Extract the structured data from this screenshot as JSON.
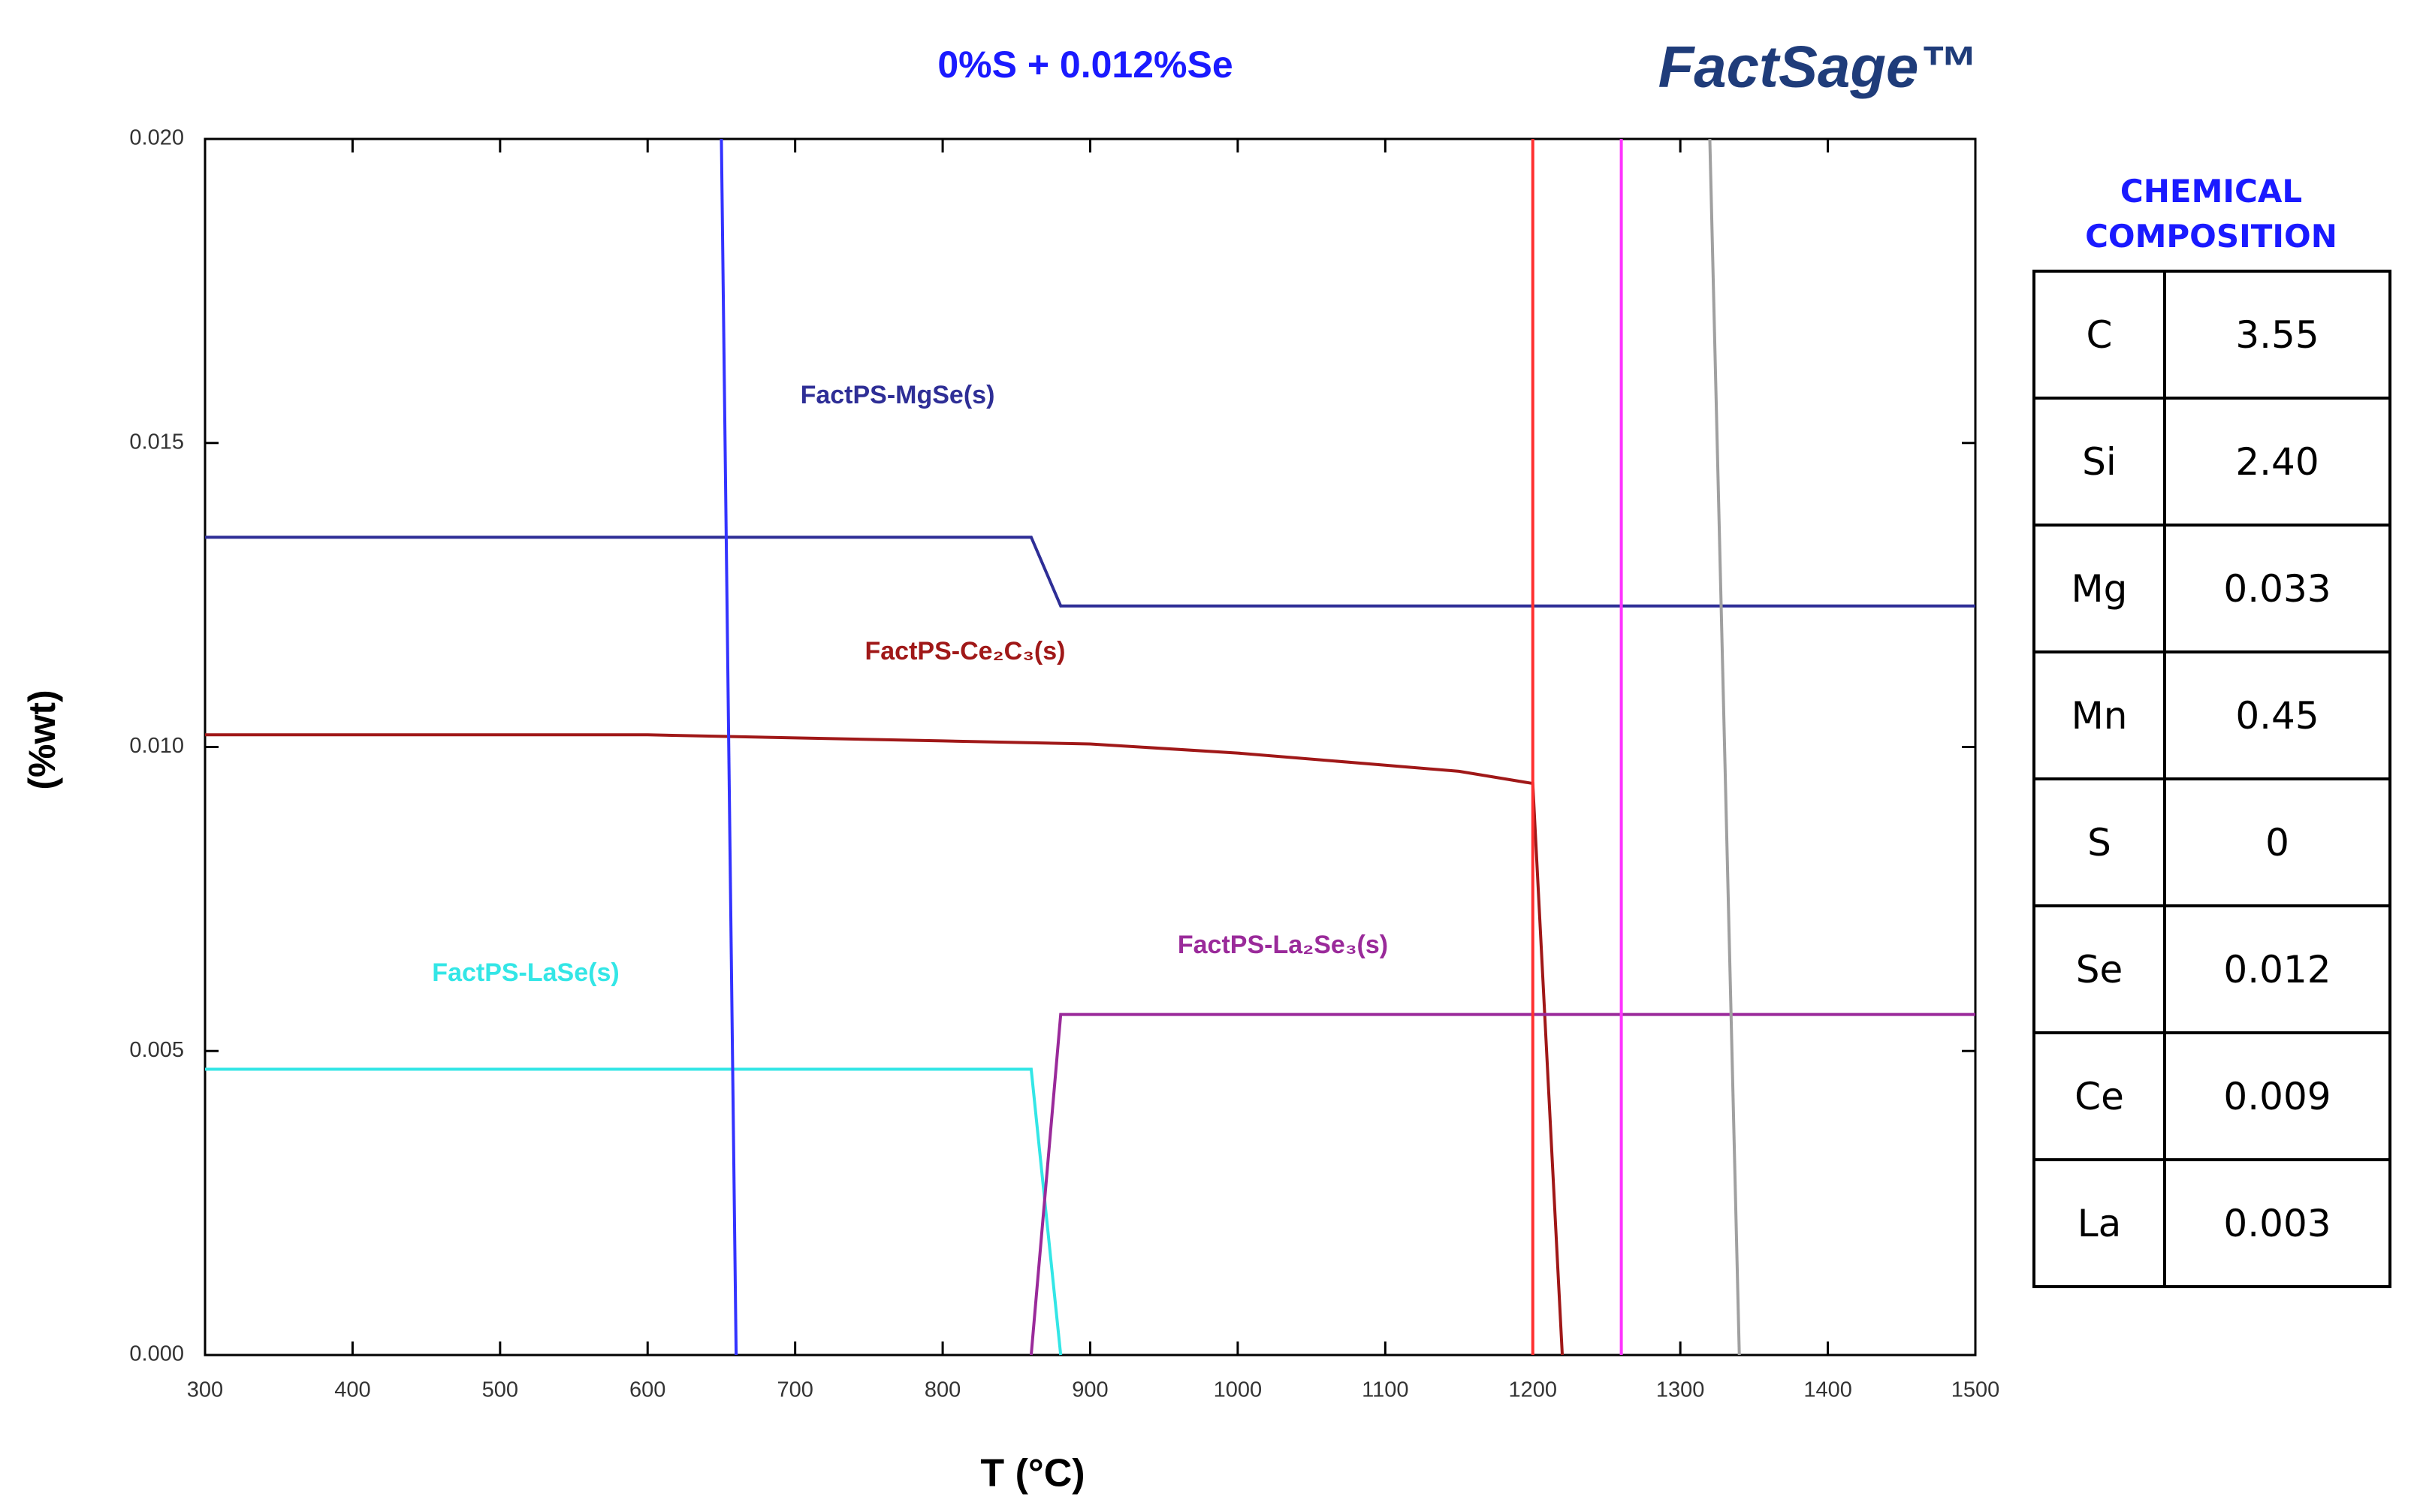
{
  "chart_data": {
    "type": "line",
    "title": "0%S + 0.012%Se",
    "logo": "FactSage™",
    "x_label": "T (°C)",
    "y_label": "(%wt)",
    "xlim": [
      300,
      1500
    ],
    "ylim": [
      0,
      0.02
    ],
    "xticks": [
      300,
      400,
      500,
      600,
      700,
      800,
      900,
      1000,
      1100,
      1200,
      1300,
      1400,
      1500
    ],
    "yticks": [
      {
        "value": 0,
        "label": "0.000"
      },
      {
        "value": 0.005,
        "label": "0.005"
      },
      {
        "value": 0.01,
        "label": "0.010"
      },
      {
        "value": 0.015,
        "label": "0.015"
      },
      {
        "value": 0.02,
        "label": "0.020"
      }
    ],
    "grid": false,
    "series": [
      {
        "name": "FactPS-MgSe(s)",
        "color": "#2e2e96",
        "x": [
          300,
          860,
          880,
          1500
        ],
        "values": [
          0.01345,
          0.01345,
          0.01232,
          0.01232
        ]
      },
      {
        "name": "FactPS-Ce₂C₃(s)",
        "color": "#a01818",
        "x": [
          300,
          600,
          800,
          900,
          1000,
          1100,
          1150,
          1200,
          1220
        ],
        "values": [
          0.0102,
          0.0102,
          0.0101,
          0.01005,
          0.0099,
          0.0097,
          0.0096,
          0.0094,
          0
        ]
      },
      {
        "name": "FactPS-LaSe(s)",
        "color": "#33e6e6",
        "x": [
          300,
          860,
          880
        ],
        "values": [
          0.0047,
          0.0047,
          0
        ]
      },
      {
        "name": "FactPS-La₂Se₃(s)",
        "color": "#9a2a9a",
        "x": [
          860,
          880,
          1500
        ],
        "values": [
          0,
          0.0056,
          0.0056
        ]
      },
      {
        "color": "#3333ff",
        "x": [
          650,
          660
        ],
        "values": [
          0.02,
          0
        ]
      },
      {
        "color": "#ff3030",
        "x": [
          1200,
          1200
        ],
        "values": [
          0.02,
          0
        ]
      },
      {
        "color": "#ff33ff",
        "x": [
          1260,
          1260
        ],
        "values": [
          0.02,
          0
        ]
      },
      {
        "color": "#a0a0a0",
        "x": [
          1320,
          1340
        ],
        "values": [
          0.02,
          0
        ]
      }
    ]
  },
  "composition": {
    "title": "CHEMICAL COMPOSITION",
    "rows": [
      [
        "C",
        "3.55"
      ],
      [
        "Si",
        "2.40"
      ],
      [
        "Mg",
        "0.033"
      ],
      [
        "Mn",
        "0.45"
      ],
      [
        "S",
        "0"
      ],
      [
        "Se",
        "0.012"
      ],
      [
        "Ce",
        "0.009"
      ],
      [
        "La",
        "0.003"
      ]
    ]
  }
}
